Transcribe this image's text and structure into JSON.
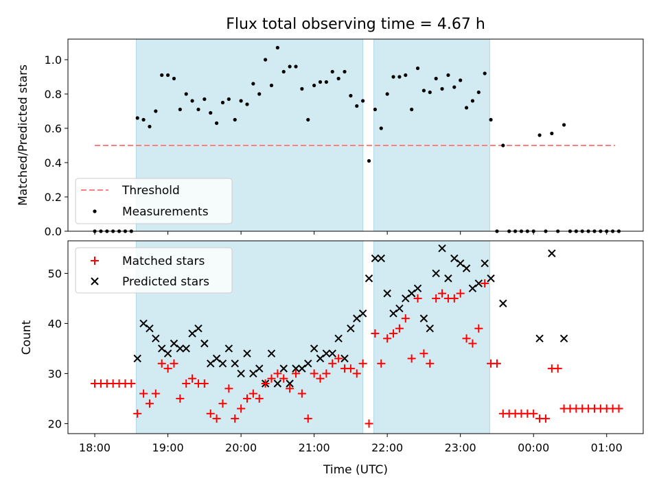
{
  "chart_data": {
    "type": "scatter",
    "title": "Flux total observing time = 4.67 h",
    "xlabel": "Time (UTC)",
    "x_unit": "hours UTC",
    "xlim": [
      "17:38",
      "01:30"
    ],
    "x_ticks": [
      "18:00",
      "19:00",
      "20:00",
      "21:00",
      "22:00",
      "23:00",
      "00:00",
      "01:00"
    ],
    "observing_windows": [
      [
        "18:34",
        "21:40"
      ],
      [
        "21:49",
        "23:24"
      ]
    ],
    "window_color": "#add8e6",
    "panels": [
      {
        "ylabel": "Matched/Predicted stars",
        "ylim": [
          0,
          1.12
        ],
        "y_ticks": [
          "0.0",
          "0.2",
          "0.4",
          "0.6",
          "0.8",
          "1.0"
        ],
        "legend_position": "lower-left",
        "series": [
          {
            "name": "Threshold",
            "kind": "line",
            "style": "dashed",
            "color": "#ff7f7f",
            "x": [
              "18:00",
              "01:07"
            ],
            "y": [
              0.5,
              0.5
            ]
          },
          {
            "name": "Measurements",
            "kind": "scatter",
            "marker": "dot",
            "color": "#000000",
            "x": [
              "18:00",
              "18:05",
              "18:10",
              "18:15",
              "18:20",
              "18:25",
              "18:30",
              "18:35",
              "18:40",
              "18:45",
              "18:50",
              "18:55",
              "19:00",
              "19:05",
              "19:10",
              "19:15",
              "19:20",
              "19:25",
              "19:30",
              "19:35",
              "19:40",
              "19:45",
              "19:50",
              "19:55",
              "20:00",
              "20:05",
              "20:10",
              "20:15",
              "20:20",
              "20:25",
              "20:30",
              "20:35",
              "20:40",
              "20:45",
              "20:50",
              "20:55",
              "21:00",
              "21:05",
              "21:10",
              "21:15",
              "21:20",
              "21:25",
              "21:30",
              "21:35",
              "21:40",
              "21:45",
              "21:50",
              "21:55",
              "22:00",
              "22:05",
              "22:10",
              "22:15",
              "22:20",
              "22:25",
              "22:30",
              "22:35",
              "22:40",
              "22:45",
              "22:50",
              "22:55",
              "23:00",
              "23:05",
              "23:10",
              "23:15",
              "23:20",
              "23:25",
              "23:30",
              "23:35",
              "23:40",
              "23:45",
              "23:50",
              "23:55",
              "00:00",
              "00:05",
              "00:10",
              "00:15",
              "00:20",
              "00:25",
              "00:30",
              "00:35",
              "00:40",
              "00:45",
              "00:50",
              "00:55",
              "01:00",
              "01:05",
              "01:10"
            ],
            "y": [
              0,
              0,
              0,
              0,
              0,
              0,
              0,
              0.66,
              0.65,
              0.61,
              0.7,
              0.91,
              0.91,
              0.89,
              0.71,
              0.8,
              0.76,
              0.71,
              0.77,
              0.69,
              0.63,
              0.75,
              0.77,
              0.65,
              0.76,
              0.74,
              0.86,
              0.8,
              1.0,
              0.85,
              1.07,
              0.93,
              0.96,
              0.96,
              0.83,
              0.65,
              0.85,
              0.87,
              0.87,
              0.93,
              0.89,
              0.93,
              0.79,
              0.73,
              0.76,
              0.41,
              0.71,
              0.6,
              0.8,
              0.9,
              0.9,
              0.91,
              0.71,
              0.95,
              0.82,
              0.81,
              0.89,
              0.83,
              0.91,
              0.84,
              0.88,
              0.72,
              0.76,
              0.81,
              0.92,
              0.65,
              0,
              0.5,
              0,
              0,
              0,
              0,
              0,
              0.56,
              0,
              0.57,
              0,
              0.62,
              0,
              0,
              0,
              0,
              0,
              0,
              0,
              0,
              0
            ]
          }
        ]
      },
      {
        "ylabel": "Count",
        "ylim": [
          18,
          56.5
        ],
        "y_ticks": [
          "20",
          "30",
          "40",
          "50"
        ],
        "legend_position": "upper-left",
        "series": [
          {
            "name": "Matched stars",
            "kind": "scatter",
            "marker": "plus",
            "color": "#ff0000",
            "x": [
              "18:00",
              "18:05",
              "18:10",
              "18:15",
              "18:20",
              "18:25",
              "18:30",
              "18:35",
              "18:40",
              "18:45",
              "18:50",
              "18:55",
              "19:00",
              "19:05",
              "19:10",
              "19:15",
              "19:20",
              "19:25",
              "19:30",
              "19:35",
              "19:40",
              "19:45",
              "19:50",
              "19:55",
              "20:00",
              "20:05",
              "20:10",
              "20:15",
              "20:20",
              "20:25",
              "20:30",
              "20:35",
              "20:40",
              "20:45",
              "20:50",
              "20:55",
              "21:00",
              "21:05",
              "21:10",
              "21:15",
              "21:20",
              "21:25",
              "21:30",
              "21:35",
              "21:40",
              "21:45",
              "21:50",
              "21:55",
              "22:00",
              "22:05",
              "22:10",
              "22:15",
              "22:20",
              "22:25",
              "22:30",
              "22:35",
              "22:40",
              "22:45",
              "22:50",
              "22:55",
              "23:00",
              "23:05",
              "23:10",
              "23:15",
              "23:20",
              "23:25",
              "23:30",
              "23:35",
              "23:40",
              "23:45",
              "23:50",
              "23:55",
              "00:00",
              "00:05",
              "00:10",
              "00:15",
              "00:20",
              "00:25",
              "00:30",
              "00:35",
              "00:40",
              "00:45",
              "00:50",
              "00:55",
              "01:00",
              "01:05",
              "01:10"
            ],
            "y": [
              28,
              28,
              28,
              28,
              28,
              28,
              28,
              22,
              26,
              24,
              26,
              32,
              31,
              32,
              25,
              28,
              29,
              28,
              28,
              22,
              21,
              24,
              27,
              21,
              23,
              25,
              26,
              25,
              28,
              29,
              30,
              29,
              27,
              30,
              26,
              21,
              30,
              29,
              30,
              32,
              33,
              31,
              31,
              30,
              32,
              20,
              38,
              32,
              37,
              38,
              39,
              41,
              33,
              45,
              34,
              32,
              45,
              46,
              45,
              45,
              46,
              37,
              36,
              39,
              48,
              32,
              32,
              22,
              22,
              22,
              22,
              22,
              22,
              21,
              21,
              31,
              31,
              23,
              23,
              23,
              23,
              23,
              23,
              23,
              23,
              23,
              23
            ]
          },
          {
            "name": "Predicted stars",
            "kind": "scatter",
            "marker": "x",
            "color": "#000000",
            "x": [
              "18:35",
              "18:40",
              "18:45",
              "18:50",
              "18:55",
              "19:00",
              "19:05",
              "19:10",
              "19:15",
              "19:20",
              "19:25",
              "19:30",
              "19:35",
              "19:40",
              "19:45",
              "19:50",
              "19:55",
              "20:00",
              "20:05",
              "20:10",
              "20:15",
              "20:20",
              "20:25",
              "20:30",
              "20:35",
              "20:40",
              "20:45",
              "20:50",
              "20:55",
              "21:00",
              "21:05",
              "21:10",
              "21:15",
              "21:20",
              "21:25",
              "21:30",
              "21:35",
              "21:40",
              "21:45",
              "21:50",
              "21:55",
              "22:00",
              "22:05",
              "22:10",
              "22:15",
              "22:20",
              "22:25",
              "22:30",
              "22:35",
              "22:40",
              "22:45",
              "22:50",
              "22:55",
              "23:00",
              "23:05",
              "23:10",
              "23:15",
              "23:20",
              "23:25",
              "23:35",
              "00:05",
              "00:15",
              "00:25"
            ],
            "y": [
              33,
              40,
              39,
              37,
              35,
              34,
              36,
              35,
              35,
              38,
              39,
              36,
              32,
              33,
              32,
              35,
              32,
              30,
              34,
              30,
              31,
              28,
              34,
              28,
              31,
              28,
              31,
              31,
              32,
              35,
              33,
              34,
              34,
              37,
              33,
              39,
              41,
              42,
              49,
              53,
              53,
              46,
              42,
              43,
              45,
              46,
              47,
              41,
              39,
              50,
              55,
              49,
              53,
              52,
              51,
              47,
              48,
              52,
              49,
              44,
              37,
              54,
              37
            ]
          }
        ]
      }
    ]
  }
}
